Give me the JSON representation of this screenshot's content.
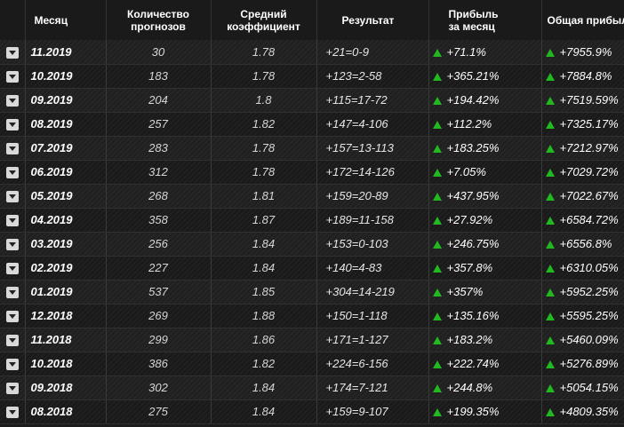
{
  "headers": {
    "month": "Месяц",
    "count_line1": "Количество",
    "count_line2": "прогнозов",
    "coef_line1": "Средний",
    "coef_line2": "коэффициент",
    "result": "Результат",
    "profit_line1": "Прибыль",
    "profit_line2": "за месяц",
    "total": "Общая прибыль"
  },
  "colors": {
    "arrow_up": "#22b81f",
    "header_text": "#ffffff"
  },
  "icons": {
    "row_toggle": "dropdown-toggle-icon",
    "trend": "arrow-up-icon"
  },
  "rows": [
    {
      "month": "11.2019",
      "count": "30",
      "coef": "1.78",
      "result": "+21=0-9",
      "profit": "+71.1%",
      "total": "+7955.9%"
    },
    {
      "month": "10.2019",
      "count": "183",
      "coef": "1.78",
      "result": "+123=2-58",
      "profit": "+365.21%",
      "total": "+7884.8%"
    },
    {
      "month": "09.2019",
      "count": "204",
      "coef": "1.8",
      "result": "+115=17-72",
      "profit": "+194.42%",
      "total": "+7519.59%"
    },
    {
      "month": "08.2019",
      "count": "257",
      "coef": "1.82",
      "result": "+147=4-106",
      "profit": "+112.2%",
      "total": "+7325.17%"
    },
    {
      "month": "07.2019",
      "count": "283",
      "coef": "1.78",
      "result": "+157=13-113",
      "profit": "+183.25%",
      "total": "+7212.97%"
    },
    {
      "month": "06.2019",
      "count": "312",
      "coef": "1.78",
      "result": "+172=14-126",
      "profit": "+7.05%",
      "total": "+7029.72%"
    },
    {
      "month": "05.2019",
      "count": "268",
      "coef": "1.81",
      "result": "+159=20-89",
      "profit": "+437.95%",
      "total": "+7022.67%"
    },
    {
      "month": "04.2019",
      "count": "358",
      "coef": "1.87",
      "result": "+189=11-158",
      "profit": "+27.92%",
      "total": "+6584.72%"
    },
    {
      "month": "03.2019",
      "count": "256",
      "coef": "1.84",
      "result": "+153=0-103",
      "profit": "+246.75%",
      "total": "+6556.8%"
    },
    {
      "month": "02.2019",
      "count": "227",
      "coef": "1.84",
      "result": "+140=4-83",
      "profit": "+357.8%",
      "total": "+6310.05%"
    },
    {
      "month": "01.2019",
      "count": "537",
      "coef": "1.85",
      "result": "+304=14-219",
      "profit": "+357%",
      "total": "+5952.25%"
    },
    {
      "month": "12.2018",
      "count": "269",
      "coef": "1.88",
      "result": "+150=1-118",
      "profit": "+135.16%",
      "total": "+5595.25%"
    },
    {
      "month": "11.2018",
      "count": "299",
      "coef": "1.86",
      "result": "+171=1-127",
      "profit": "+183.2%",
      "total": "+5460.09%"
    },
    {
      "month": "10.2018",
      "count": "386",
      "coef": "1.82",
      "result": "+224=6-156",
      "profit": "+222.74%",
      "total": "+5276.89%"
    },
    {
      "month": "09.2018",
      "count": "302",
      "coef": "1.84",
      "result": "+174=7-121",
      "profit": "+244.8%",
      "total": "+5054.15%"
    },
    {
      "month": "08.2018",
      "count": "275",
      "coef": "1.84",
      "result": "+159=9-107",
      "profit": "+199.35%",
      "total": "+4809.35%"
    }
  ]
}
